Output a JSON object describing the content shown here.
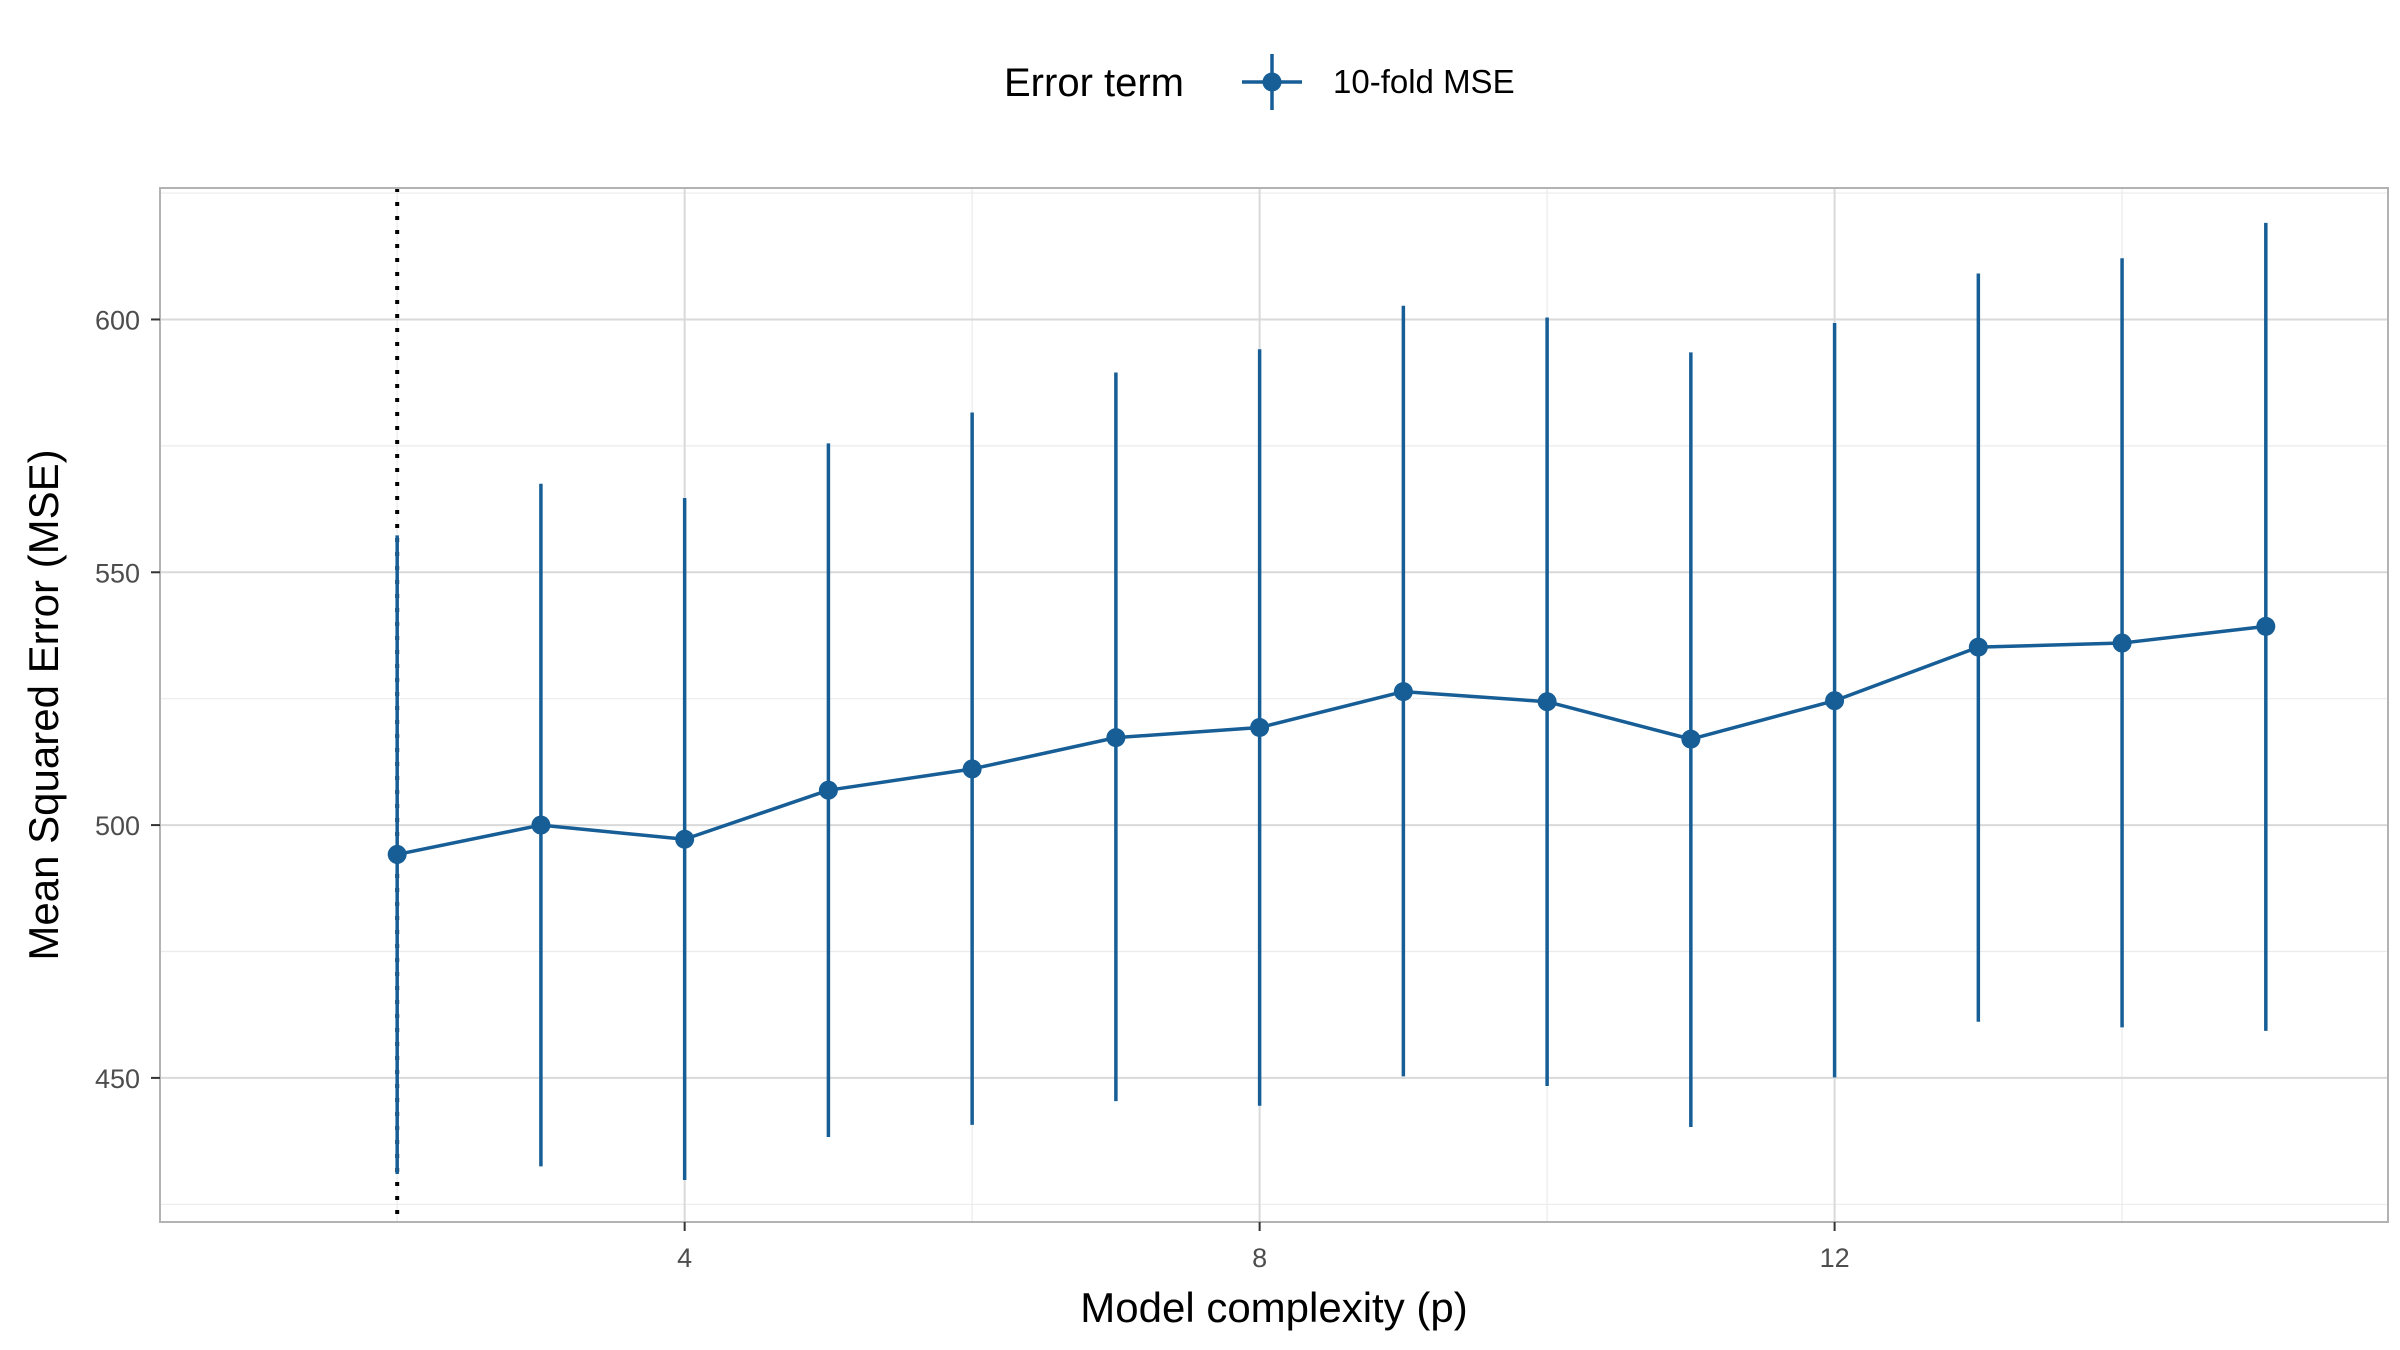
{
  "chart_data": {
    "type": "line",
    "title": "",
    "xlabel": "Model complexity (p)",
    "ylabel": "Mean Squared Error (MSE)",
    "xlim": [
      0.35,
      15.85
    ],
    "ylim": [
      421.5,
      626
    ],
    "x_ticks": [
      4,
      8,
      12
    ],
    "y_ticks": [
      450,
      500,
      550,
      600
    ],
    "x_tick_labels": [
      "4",
      "8",
      "12"
    ],
    "y_tick_labels": [
      "450",
      "500",
      "550",
      "600"
    ],
    "grid": true,
    "legend_position": "top",
    "legend_title": "Error term",
    "series": [
      {
        "name": "10-fold MSE",
        "color": "#175e97",
        "x": [
          2,
          3,
          4,
          5,
          6,
          7,
          8,
          9,
          10,
          11,
          12,
          13,
          14,
          15
        ],
        "y": [
          494.2,
          500.0,
          497.2,
          506.9,
          511.1,
          517.3,
          519.3,
          526.4,
          524.4,
          517.0,
          524.6,
          535.2,
          536.0,
          539.3
        ],
        "ymin": [
          431.0,
          432.5,
          429.8,
          438.3,
          440.7,
          445.4,
          444.5,
          450.3,
          448.4,
          440.3,
          450.1,
          461.1,
          460.0,
          459.3
        ],
        "ymax": [
          557.3,
          567.5,
          564.7,
          575.5,
          581.6,
          589.5,
          594.1,
          602.7,
          600.4,
          593.5,
          599.3,
          609.1,
          612.1,
          619.1
        ]
      }
    ],
    "vline": {
      "x": 2,
      "style": "dotted",
      "color": "#000000"
    }
  }
}
